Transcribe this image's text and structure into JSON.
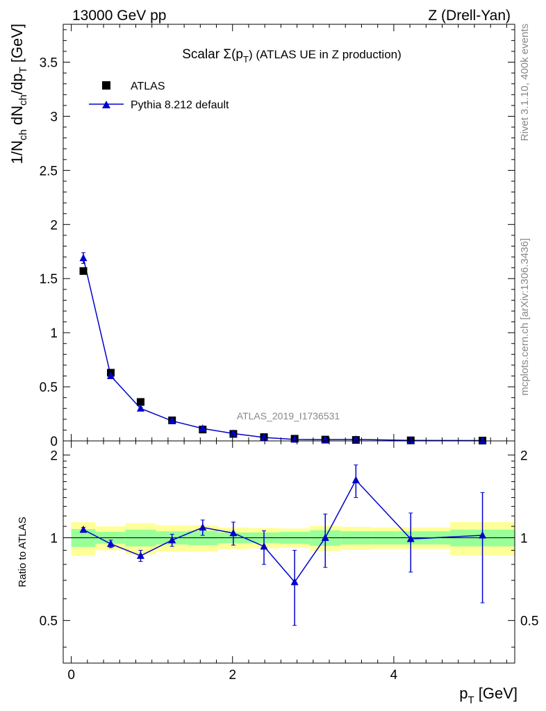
{
  "header": {
    "left": "13000 GeV pp",
    "right": "Z (Drell-Yan)"
  },
  "side_labels": {
    "rivet": "Rivet 3.1.10,  400k events",
    "mcplots": "mcplots.cern.ch [arXiv:1306.3436]"
  },
  "colors": {
    "data": "#000000",
    "mc": "#0000cc",
    "band_inner": "#99ff99",
    "band_outer": "#ffff99"
  },
  "chart_data": [
    {
      "type": "scatter",
      "title_main": "Scalar Σ(p",
      "title_sub": "T",
      "title_tail": ") (ATLAS UE in Z production)",
      "analysis_id": "ATLAS_2019_I1736531",
      "ylabel": {
        "p1": "1/N",
        "s1": "ch",
        "p2": " dN",
        "s2": "ch",
        "p3": "/dp",
        "s3": "T",
        "p4": " [GeV]"
      },
      "xlim": [
        -0.1,
        5.5
      ],
      "ylim": [
        0,
        3.85
      ],
      "yticks": [
        0,
        0.5,
        1,
        1.5,
        2,
        2.5,
        3,
        3.5
      ],
      "ytick_labels": [
        "0",
        "0.5",
        "1",
        "1.5",
        "2",
        "2.5",
        "3",
        "3.5"
      ],
      "x": [
        0.15,
        0.49,
        0.86,
        1.25,
        1.63,
        2.01,
        2.39,
        2.77,
        3.15,
        3.53,
        4.21,
        5.1
      ],
      "series": [
        {
          "name": "ATLAS",
          "style": "square",
          "values": [
            1.57,
            0.63,
            0.36,
            0.19,
            0.105,
            0.065,
            0.035,
            0.02,
            0.012,
            0.009,
            0.005,
            0.003
          ]
        },
        {
          "name": "Pythia 8.212 default",
          "style": "triangle-line",
          "values": [
            1.69,
            0.6,
            0.3,
            0.185,
            0.115,
            0.068,
            0.032,
            0.014,
            0.012,
            0.014,
            0.005,
            0.003
          ],
          "errors": [
            0.05,
            0.015,
            0.01,
            0.008,
            0.005,
            0.004,
            0.003,
            0.002,
            0.002,
            0.002,
            0.001,
            0.001
          ]
        }
      ],
      "legend": {
        "entries": [
          "ATLAS",
          "Pythia 8.212 default"
        ],
        "position": "top-left"
      }
    },
    {
      "type": "line",
      "ylabel": "Ratio to ATLAS",
      "xlabel_main": "p",
      "xlabel_sub": "T",
      "xlabel_tail": " [GeV]",
      "xlim": [
        -0.1,
        5.5
      ],
      "ylim": [
        0.35,
        2.25
      ],
      "xticks": [
        0,
        2,
        4
      ],
      "xtick_labels": [
        "0",
        "2",
        "4"
      ],
      "yticks": [
        0.5,
        1,
        2
      ],
      "ytick_labels": [
        "0.5",
        "1",
        "2"
      ],
      "reference": 1,
      "bins": [
        {
          "lo": 0.0,
          "hi": 0.3,
          "inner": 0.075,
          "outer": 0.14
        },
        {
          "lo": 0.3,
          "hi": 0.67,
          "inner": 0.05,
          "outer": 0.1
        },
        {
          "lo": 0.67,
          "hi": 1.05,
          "inner": 0.07,
          "outer": 0.13
        },
        {
          "lo": 1.05,
          "hi": 1.44,
          "inner": 0.055,
          "outer": 0.11
        },
        {
          "lo": 1.44,
          "hi": 1.82,
          "inner": 0.06,
          "outer": 0.11
        },
        {
          "lo": 1.82,
          "hi": 2.2,
          "inner": 0.045,
          "outer": 0.09
        },
        {
          "lo": 2.2,
          "hi": 2.58,
          "inner": 0.045,
          "outer": 0.085
        },
        {
          "lo": 2.58,
          "hi": 2.96,
          "inner": 0.05,
          "outer": 0.08
        },
        {
          "lo": 2.96,
          "hi": 3.34,
          "inner": 0.065,
          "outer": 0.105
        },
        {
          "lo": 3.34,
          "hi": 3.72,
          "inner": 0.055,
          "outer": 0.095
        },
        {
          "lo": 3.72,
          "hi": 4.7,
          "inner": 0.055,
          "outer": 0.09
        },
        {
          "lo": 4.7,
          "hi": 5.5,
          "inner": 0.07,
          "outer": 0.14
        }
      ],
      "x": [
        0.15,
        0.49,
        0.86,
        1.25,
        1.63,
        2.01,
        2.39,
        2.77,
        3.15,
        3.53,
        4.21,
        5.1
      ],
      "values": [
        1.07,
        0.95,
        0.86,
        0.98,
        1.09,
        1.04,
        0.93,
        0.69,
        1.0,
        1.62,
        0.99,
        1.02
      ],
      "err_lo": [
        0.02,
        0.03,
        0.04,
        0.05,
        0.07,
        0.1,
        0.13,
        0.21,
        0.22,
        0.22,
        0.24,
        0.44
      ],
      "err_hi": [
        0.02,
        0.03,
        0.04,
        0.05,
        0.07,
        0.1,
        0.13,
        0.21,
        0.22,
        0.22,
        0.24,
        0.44
      ]
    }
  ]
}
